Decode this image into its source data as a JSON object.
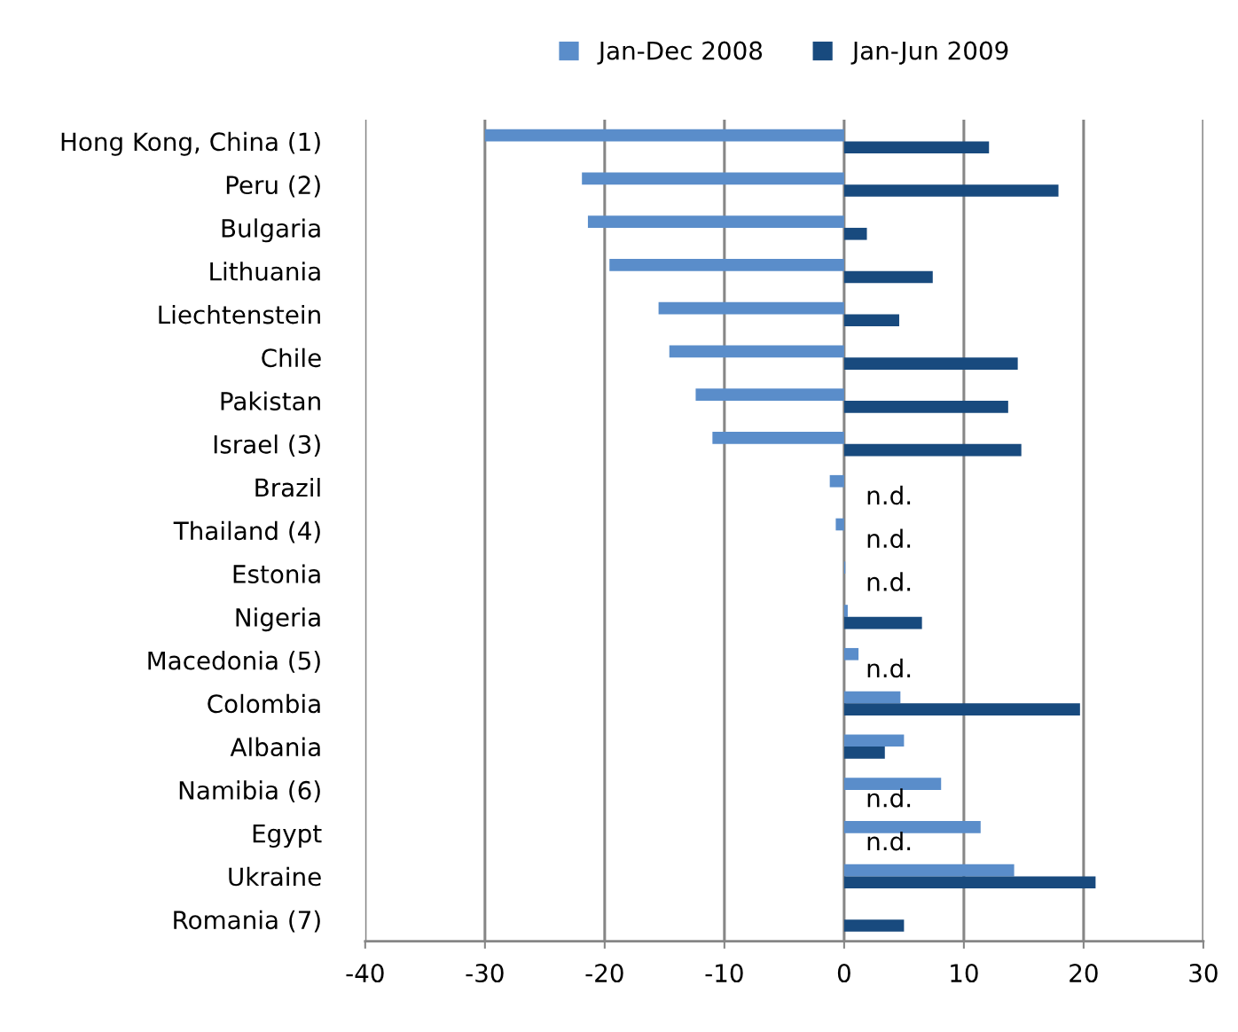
{
  "chart_data": {
    "type": "bar",
    "orientation": "horizontal",
    "categories": [
      "Hong Kong, China (1)",
      "Peru (2)",
      "Bulgaria",
      "Lithuania",
      "Liechtenstein",
      "Chile",
      "Pakistan",
      "Israel (3)",
      "Brazil",
      "Thailand (4)",
      "Estonia",
      "Nigeria",
      "Macedonia (5)",
      "Colombia",
      "Albania",
      "Namibia (6)",
      "Egypt",
      "Ukraine",
      "Romania (7)"
    ],
    "series": [
      {
        "name": "Jan-Dec 2008",
        "color": "#5a8dca",
        "values": [
          -30.0,
          -21.9,
          -21.4,
          -19.6,
          -15.5,
          -14.6,
          -12.4,
          -11.0,
          -1.2,
          -0.7,
          0.1,
          0.3,
          1.2,
          4.7,
          5.0,
          8.1,
          11.4,
          14.2,
          null
        ]
      },
      {
        "name": "Jan-Jun 2009",
        "color": "#184a7e",
        "values": [
          12.1,
          17.9,
          1.9,
          7.4,
          4.6,
          14.5,
          13.7,
          14.8,
          null,
          null,
          null,
          6.5,
          null,
          19.7,
          3.4,
          null,
          null,
          21.0,
          5.0
        ],
        "value_labels": [
          null,
          null,
          null,
          null,
          null,
          null,
          null,
          null,
          "n.d.",
          "n.d.",
          "n.d.",
          null,
          "n.d.",
          null,
          null,
          "n.d.",
          "n.d.",
          null,
          null
        ]
      }
    ],
    "xlim": [
      -40,
      30
    ],
    "xticks": [
      -40,
      -30,
      -20,
      -10,
      0,
      10,
      20,
      30
    ],
    "grid": "x",
    "legend": "top"
  }
}
